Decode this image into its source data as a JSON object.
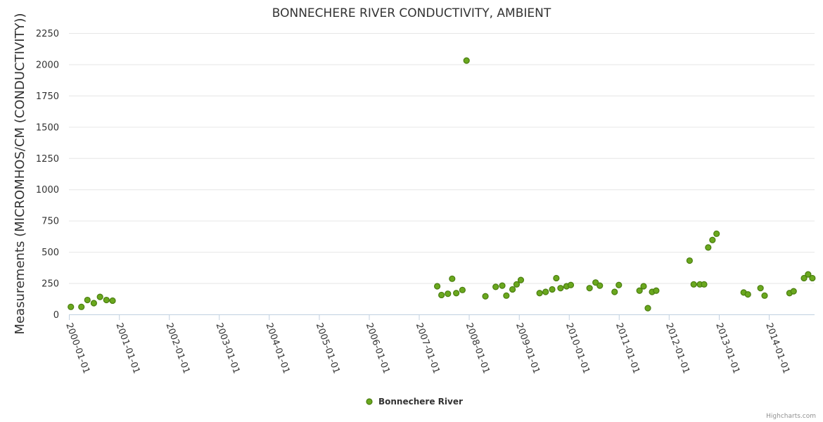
{
  "chart_data": {
    "type": "scatter",
    "title": "BONNECHERE RIVER CONDUCTIVITY, AMBIENT",
    "ylabel": "Measurements (MICROMHOS/CM (CONDUCTIVITY))",
    "xlabel": "",
    "x_axis_type": "date",
    "xlim": [
      "2000-01-01",
      "2014-12-01"
    ],
    "ylim": [
      0,
      2250
    ],
    "yticks": [
      0,
      250,
      500,
      750,
      1000,
      1250,
      1500,
      1750,
      2000,
      2250
    ],
    "xticks": [
      "2000-01-01",
      "2001-01-01",
      "2002-01-01",
      "2003-01-01",
      "2004-01-01",
      "2005-01-01",
      "2006-01-01",
      "2007-01-01",
      "2008-01-01",
      "2009-01-01",
      "2010-01-01",
      "2011-01-01",
      "2012-01-01",
      "2013-01-01",
      "2014-01-01"
    ],
    "grid": true,
    "legend_position": "bottom-center",
    "series": [
      {
        "name": "Bonnechere River",
        "color": "#6aa81e",
        "points": [
          {
            "x": "2000-01-15",
            "y": 60
          },
          {
            "x": "2000-04-01",
            "y": 60
          },
          {
            "x": "2000-05-15",
            "y": 115
          },
          {
            "x": "2000-07-01",
            "y": 90
          },
          {
            "x": "2000-08-15",
            "y": 140
          },
          {
            "x": "2000-10-01",
            "y": 115
          },
          {
            "x": "2000-11-15",
            "y": 110
          },
          {
            "x": "2007-05-15",
            "y": 225
          },
          {
            "x": "2007-06-15",
            "y": 155
          },
          {
            "x": "2007-08-01",
            "y": 165
          },
          {
            "x": "2007-09-01",
            "y": 285
          },
          {
            "x": "2007-10-01",
            "y": 170
          },
          {
            "x": "2007-11-15",
            "y": 195
          },
          {
            "x": "2007-12-15",
            "y": 2030
          },
          {
            "x": "2008-05-01",
            "y": 145
          },
          {
            "x": "2008-07-15",
            "y": 220
          },
          {
            "x": "2008-09-01",
            "y": 230
          },
          {
            "x": "2008-10-01",
            "y": 150
          },
          {
            "x": "2008-11-15",
            "y": 200
          },
          {
            "x": "2008-12-15",
            "y": 240
          },
          {
            "x": "2009-01-15",
            "y": 275
          },
          {
            "x": "2009-06-01",
            "y": 170
          },
          {
            "x": "2009-07-15",
            "y": 180
          },
          {
            "x": "2009-09-01",
            "y": 200
          },
          {
            "x": "2009-10-01",
            "y": 290
          },
          {
            "x": "2009-11-01",
            "y": 210
          },
          {
            "x": "2009-12-15",
            "y": 225
          },
          {
            "x": "2010-01-15",
            "y": 235
          },
          {
            "x": "2010-06-01",
            "y": 210
          },
          {
            "x": "2010-07-15",
            "y": 255
          },
          {
            "x": "2010-08-15",
            "y": 230
          },
          {
            "x": "2010-12-01",
            "y": 180
          },
          {
            "x": "2011-01-01",
            "y": 235
          },
          {
            "x": "2011-06-01",
            "y": 190
          },
          {
            "x": "2011-07-01",
            "y": 225
          },
          {
            "x": "2011-08-01",
            "y": 50
          },
          {
            "x": "2011-09-01",
            "y": 180
          },
          {
            "x": "2011-10-01",
            "y": 190
          },
          {
            "x": "2012-06-01",
            "y": 430
          },
          {
            "x": "2012-07-01",
            "y": 240
          },
          {
            "x": "2012-08-15",
            "y": 240
          },
          {
            "x": "2012-09-15",
            "y": 240
          },
          {
            "x": "2012-10-15",
            "y": 535
          },
          {
            "x": "2012-11-15",
            "y": 595
          },
          {
            "x": "2012-12-15",
            "y": 645
          },
          {
            "x": "2013-07-01",
            "y": 175
          },
          {
            "x": "2013-08-01",
            "y": 160
          },
          {
            "x": "2013-11-01",
            "y": 210
          },
          {
            "x": "2013-12-01",
            "y": 150
          },
          {
            "x": "2014-06-01",
            "y": 170
          },
          {
            "x": "2014-07-01",
            "y": 185
          },
          {
            "x": "2014-09-15",
            "y": 290
          },
          {
            "x": "2014-10-15",
            "y": 320
          },
          {
            "x": "2014-11-15",
            "y": 290
          }
        ]
      }
    ]
  },
  "credits": "Highcharts.com"
}
